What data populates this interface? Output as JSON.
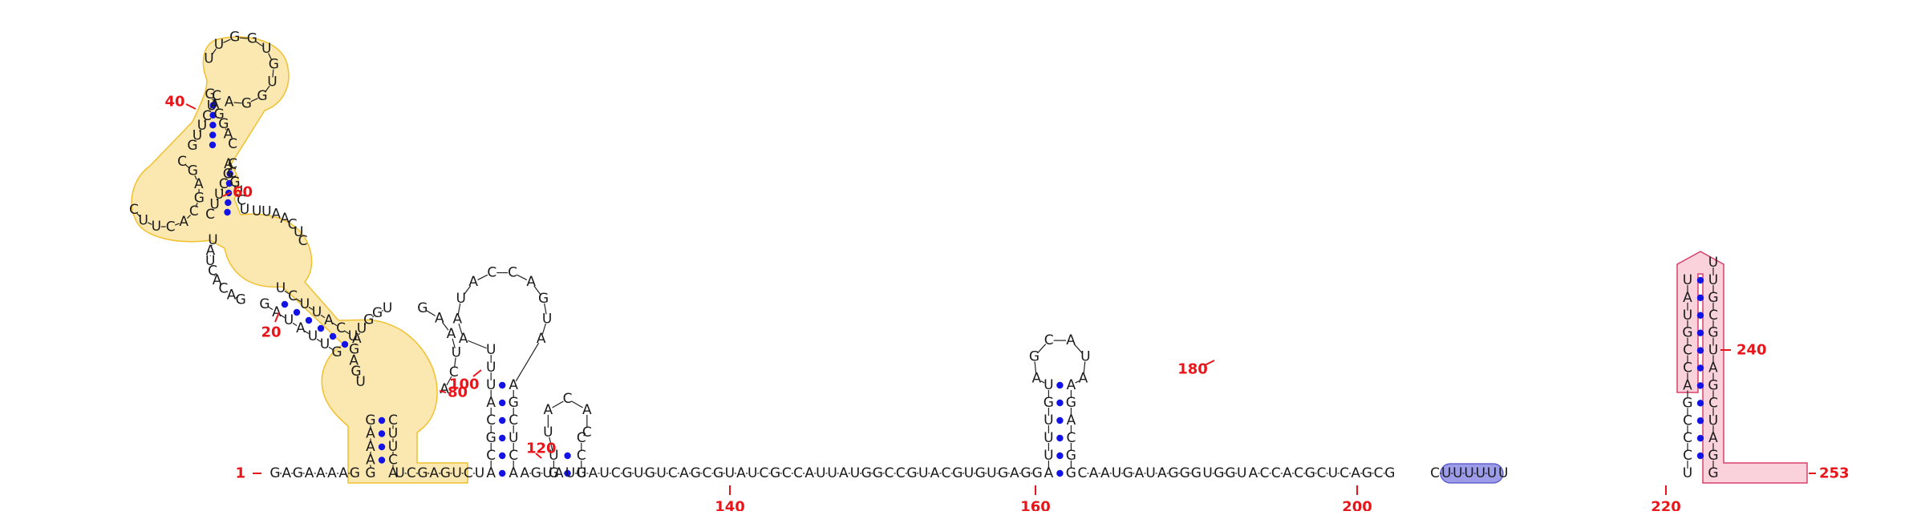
{
  "diagram": {
    "sequence": "GAGAAAAGUCGAGUCUAGUAUUAUCGUGUCAGCGUAUCGCCAUUAUGGCCGUACGUGUGAGGCAAUGAUAGGGUGGUACCACGCUCAGCGCUUUUUU",
    "colors": {
      "yellow_fill": "#fbe8b0",
      "yellow_stroke": "#f0c030",
      "pink_fill": "#f9d2dc",
      "pink_stroke": "#d8406a",
      "blue_fill": "#9c9ce8",
      "blue_stroke": "#5050c8",
      "pair_dot": "#1313e6",
      "number": "#e8151b"
    },
    "position_labels": [
      "1",
      "20",
      "40",
      "60",
      "80",
      "100",
      "120",
      "140",
      "160",
      "180",
      "200",
      "220",
      "240",
      "253"
    ],
    "baseline": {
      "left": "GAGAAAAG",
      "after_stem1": "UCGAGUCU",
      "after_stem2": "AGU",
      "middle": "AUUAUCGUGUCAGCGUAUCGCCAUUAUGGCCGUACGUGUGAGG",
      "after_hairpin4_a": "CAAUGAUAGGG",
      "highlight": "UGGU",
      "after_highlight": "ACCACGCUCAGCG",
      "tail": "CUUUUU",
      "tail_end": "U"
    },
    "hairpin_100": {
      "left": "ACGCAUUUAA",
      "loop": "UACCAGUA",
      "right": "AGCUCA"
    },
    "hairpin_120": {
      "left": "GU",
      "loop": "UACAC",
      "right": "CCG"
    },
    "hairpin_180": {
      "left": "AUUUGU",
      "loop": "AGCAUA",
      "right": "AGACGG"
    },
    "hairpin_240": {
      "left": "UCCCGACCGUAU",
      "loop": "UU",
      "right": "GCGUAGCUAGGCA"
    },
    "large_domain": {
      "stem_left": "GAAAG",
      "stem_right": "CUUCA",
      "loop4": "AUGAG",
      "strand_a": "UAUUCGCAG",
      "strand_b": "UUACUUGAA",
      "loop3_left": "AUAGG",
      "loop3_right": "UUUAACU",
      "loop2": "CGAGCACUUC",
      "strand_c": "UCUCC",
      "strand_d": "AGGAG",
      "loop1": "UUGGUGUGGA"
    }
  }
}
